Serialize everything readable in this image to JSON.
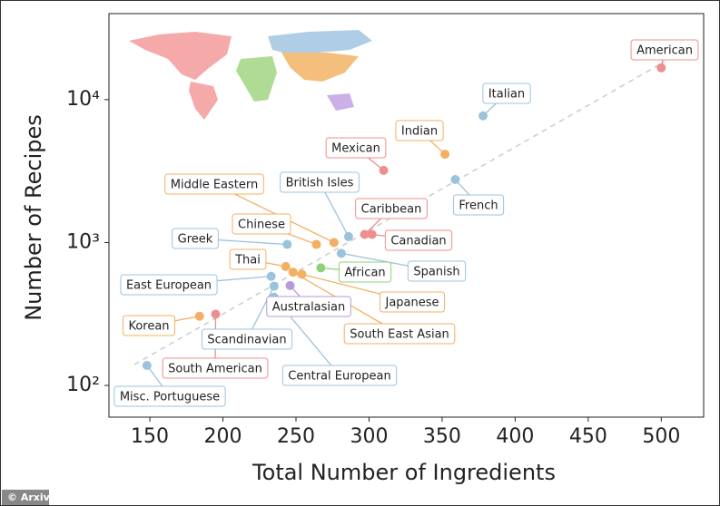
{
  "chart_data": {
    "type": "scatter",
    "log_y": true,
    "x_label": "Total Number of Ingredients",
    "y_label": "Number of Recipes",
    "xlim": [
      122,
      529
    ],
    "ylim": [
      60,
      40000
    ],
    "xticks": [
      150,
      200,
      250,
      300,
      350,
      400,
      450,
      500
    ],
    "yticks": [
      {
        "value": 100,
        "label": "10²"
      },
      {
        "value": 1000,
        "label": "10³"
      },
      {
        "value": 10000,
        "label": "10⁴"
      }
    ],
    "points": [
      {
        "name": "American",
        "x": 500,
        "y": 16700,
        "color": "#ee8f8f"
      },
      {
        "name": "Italian",
        "x": 378,
        "y": 7700,
        "color": "#9cc3dc"
      },
      {
        "name": "Indian",
        "x": 352,
        "y": 4150,
        "color": "#f3b062"
      },
      {
        "name": "Mexican",
        "x": 310,
        "y": 3200,
        "color": "#ee8f8f"
      },
      {
        "name": "French",
        "x": 359,
        "y": 2760,
        "color": "#9cc3dc"
      },
      {
        "name": "British Isles",
        "x": 286,
        "y": 1100,
        "color": "#9cc3dc"
      },
      {
        "name": "Caribbean",
        "x": 297,
        "y": 1140,
        "color": "#ee8f8f"
      },
      {
        "name": "Canadian",
        "x": 302,
        "y": 1140,
        "color": "#ee8f8f"
      },
      {
        "name": "Middle Eastern",
        "x": 276,
        "y": 1000,
        "color": "#f3b062"
      },
      {
        "name": "Chinese",
        "x": 264,
        "y": 970,
        "color": "#f3b062"
      },
      {
        "name": "Greek",
        "x": 244,
        "y": 970,
        "color": "#9cc3dc"
      },
      {
        "name": "African",
        "x": 267,
        "y": 665,
        "color": "#8fd07a"
      },
      {
        "name": "Spanish",
        "x": 281,
        "y": 840,
        "color": "#9cc3dc"
      },
      {
        "name": "Thai",
        "x": 243,
        "y": 680,
        "color": "#f3b062"
      },
      {
        "name": "Japanese",
        "x": 254,
        "y": 600,
        "color": "#f3b062"
      },
      {
        "name": "South East Asian",
        "x": 248,
        "y": 620,
        "color": "#f3b062"
      },
      {
        "name": "East European",
        "x": 233,
        "y": 580,
        "color": "#9cc3dc"
      },
      {
        "name": "Australasian",
        "x": 246,
        "y": 500,
        "color": "#b79ad9"
      },
      {
        "name": "Scandinavian",
        "x": 235,
        "y": 495,
        "color": "#9cc3dc"
      },
      {
        "name": "Central European",
        "x": 235,
        "y": 415,
        "color": "#9cc3dc"
      },
      {
        "name": "Korean",
        "x": 184,
        "y": 305,
        "color": "#f3b062"
      },
      {
        "name": "South American",
        "x": 195,
        "y": 315,
        "color": "#ee8f8f"
      },
      {
        "name": "Misc. Portuguese",
        "x": 148,
        "y": 138,
        "color": "#9cc3dc"
      }
    ]
  },
  "credit": "© Arxiv"
}
